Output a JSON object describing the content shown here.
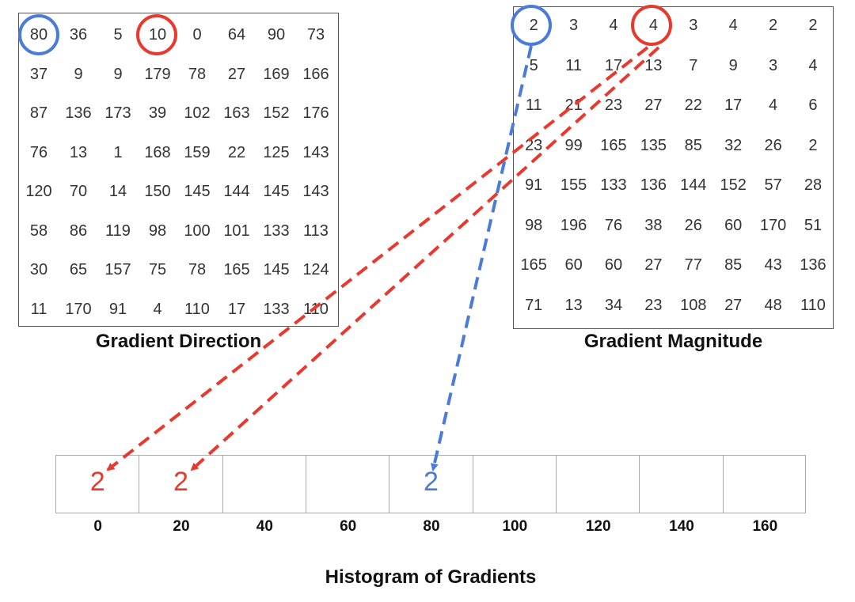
{
  "direction": {
    "caption": "Gradient Direction",
    "rows": [
      [
        "80",
        "36",
        "5",
        "10",
        "0",
        "64",
        "90",
        "73"
      ],
      [
        "37",
        "9",
        "9",
        "179",
        "78",
        "27",
        "169",
        "166"
      ],
      [
        "87",
        "136",
        "173",
        "39",
        "102",
        "163",
        "152",
        "176"
      ],
      [
        "76",
        "13",
        "1",
        "168",
        "159",
        "22",
        "125",
        "143"
      ],
      [
        "120",
        "70",
        "14",
        "150",
        "145",
        "144",
        "145",
        "143"
      ],
      [
        "58",
        "86",
        "119",
        "98",
        "100",
        "101",
        "133",
        "113"
      ],
      [
        "30",
        "65",
        "157",
        "75",
        "78",
        "165",
        "145",
        "124"
      ],
      [
        "11",
        "170",
        "91",
        "4",
        "110",
        "17",
        "133",
        "110"
      ]
    ]
  },
  "magnitude": {
    "caption": "Gradient Magnitude",
    "rows": [
      [
        "2",
        "3",
        "4",
        "4",
        "3",
        "4",
        "2",
        "2"
      ],
      [
        "5",
        "11",
        "17",
        "13",
        "7",
        "9",
        "3",
        "4"
      ],
      [
        "11",
        "21",
        "23",
        "27",
        "22",
        "17",
        "4",
        "6"
      ],
      [
        "23",
        "99",
        "165",
        "135",
        "85",
        "32",
        "26",
        "2"
      ],
      [
        "91",
        "155",
        "133",
        "136",
        "144",
        "152",
        "57",
        "28"
      ],
      [
        "98",
        "196",
        "76",
        "38",
        "26",
        "60",
        "170",
        "51"
      ],
      [
        "165",
        "60",
        "60",
        "27",
        "77",
        "85",
        "43",
        "136"
      ],
      [
        "71",
        "13",
        "34",
        "23",
        "108",
        "27",
        "48",
        "110"
      ]
    ]
  },
  "histogram": {
    "caption": "Histogram of Gradients",
    "bins": [
      {
        "label": "0",
        "value": "2",
        "color": "#e8392f"
      },
      {
        "label": "20",
        "value": "2",
        "color": "#e8392f"
      },
      {
        "label": "40",
        "value": ""
      },
      {
        "label": "60",
        "value": ""
      },
      {
        "label": "80",
        "value": "2",
        "color": "#4a7bd8"
      },
      {
        "label": "100",
        "value": ""
      },
      {
        "label": "120",
        "value": ""
      },
      {
        "label": "140",
        "value": ""
      },
      {
        "label": "160",
        "value": ""
      }
    ]
  },
  "colors": {
    "red": "#e8392f",
    "blue": "#4a7bd8"
  }
}
